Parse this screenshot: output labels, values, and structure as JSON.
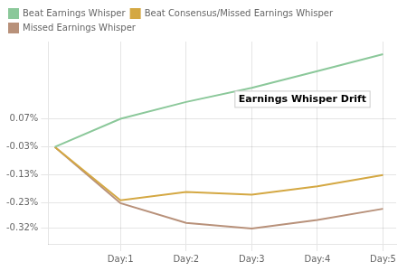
{
  "chart_data": {
    "type": "line",
    "x": [
      0,
      1,
      2,
      3,
      4,
      5
    ],
    "series": [
      {
        "name": "Beat Earnings Whisper",
        "color": "#8bc89a",
        "values": [
          -0.03,
          0.07,
          0.13,
          0.18,
          0.24,
          0.3
        ]
      },
      {
        "name": "Beat Consensus/Missed Earnings Whisper",
        "color": "#d4a843",
        "values": [
          -0.03,
          -0.22,
          -0.19,
          -0.2,
          -0.17,
          -0.13
        ]
      },
      {
        "name": "Missed Earnings Whisper",
        "color": "#b8917a",
        "values": [
          -0.03,
          -0.23,
          -0.3,
          -0.32,
          -0.29,
          -0.25
        ]
      }
    ],
    "xlim": [
      -0.1,
      5.2
    ],
    "xticks": [
      {
        "value": 1,
        "label": "Day:1"
      },
      {
        "value": 2,
        "label": "Day:2"
      },
      {
        "value": 3,
        "label": "Day:3"
      },
      {
        "value": 4,
        "label": "Day:4"
      },
      {
        "value": 5,
        "label": "Day:5"
      }
    ],
    "ylim": [
      -0.375,
      0.345
    ],
    "yticks": [
      {
        "value": 0.07,
        "label": "0.07%"
      },
      {
        "value": -0.03,
        "label": "-0.03%"
      },
      {
        "value": -0.13,
        "label": "-0.13%"
      },
      {
        "value": -0.23,
        "label": "-0.23%"
      },
      {
        "value": -0.32,
        "label": "-0.32%"
      }
    ],
    "annotations": [
      {
        "text": "Earnings Whisper Drift",
        "x": 2.8,
        "y": 0.13
      }
    ],
    "grid": true,
    "legend": "upper left",
    "marker": "none"
  }
}
